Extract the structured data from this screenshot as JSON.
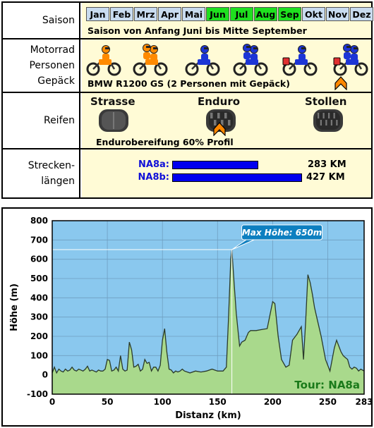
{
  "info": {
    "saison": {
      "label": "Saison",
      "months": [
        {
          "name": "Jan",
          "active": false
        },
        {
          "name": "Feb",
          "active": false
        },
        {
          "name": "Mrz",
          "active": false
        },
        {
          "name": "Apr",
          "active": false
        },
        {
          "name": "Mai",
          "active": false
        },
        {
          "name": "Jun",
          "active": true
        },
        {
          "name": "Jul",
          "active": true
        },
        {
          "name": "Aug",
          "active": true
        },
        {
          "name": "Sep",
          "active": true
        },
        {
          "name": "Okt",
          "active": false
        },
        {
          "name": "Nov",
          "active": false
        },
        {
          "name": "Dez",
          "active": false
        }
      ],
      "text": "Saison von Anfang Juni bis Mitte September"
    },
    "motorrad": {
      "label_lines": [
        "Motorrad",
        "Personen",
        "Gepäck"
      ],
      "icons": [
        {
          "name": "enduro-1-person-icon",
          "color": "#ff8a00",
          "riders": 1,
          "luggage": false
        },
        {
          "name": "enduro-2-persons-icon",
          "color": "#ff8a00",
          "riders": 2,
          "luggage": false
        },
        {
          "name": "tourer-1-person-icon",
          "color": "#1c35d6",
          "riders": 1,
          "luggage": false
        },
        {
          "name": "tourer-2-persons-icon",
          "color": "#1c35d6",
          "riders": 2,
          "luggage": false
        },
        {
          "name": "tourer-1-person-luggage-icon",
          "color": "#1c35d6",
          "riders": 1,
          "luggage": true
        },
        {
          "name": "tourer-2-persons-luggage-icon",
          "color": "#1c35d6",
          "riders": 2,
          "luggage": true
        }
      ],
      "selected_index": 5,
      "text": "BMW R1200 GS  (2 Personen mit Gepäck)"
    },
    "reifen": {
      "label": "Reifen",
      "types": [
        "Strasse",
        "Enduro",
        "Stollen"
      ],
      "selected_index": 1,
      "text": "Endurobereifung 60% Profil"
    },
    "strecke": {
      "label_lines": [
        "Strecken-",
        "längen"
      ],
      "tracks": [
        {
          "name": "NA8a:",
          "km": 283,
          "display": "283 KM"
        },
        {
          "name": "NA8b:",
          "km": 427,
          "display": "427 KM"
        }
      ]
    },
    "colors": {
      "accent_orange": "#ff8800",
      "month_active": "#1fe01f",
      "month_inactive": "#c9dcf0",
      "bar_blue": "#0000ee"
    }
  },
  "chart_data": {
    "type": "area",
    "xlabel": "Distanz  (km)",
    "ylabel": "Höhe  (m)",
    "xlim": [
      0,
      283
    ],
    "ylim": [
      -100,
      800
    ],
    "xticks": [
      "0",
      "50",
      "100",
      "150",
      "200",
      "250",
      "283"
    ],
    "yticks": [
      "800",
      "700",
      "600",
      "500",
      "400",
      "300",
      "200",
      "100",
      "0",
      "-100"
    ],
    "annotation": "Max Höhe: 650m",
    "max": {
      "x": 163,
      "y": 650
    },
    "legend": "Tour: NA8a",
    "grid": true,
    "colors": {
      "background": "#8ac8ee",
      "fill": "#a9d98c",
      "line": "#2a3a2a",
      "legend_text": "#1a7a1a",
      "annotation_bg": "#0d7fc0"
    },
    "x": [
      0,
      2,
      4,
      6,
      8,
      10,
      12,
      14,
      16,
      18,
      20,
      22,
      24,
      26,
      28,
      30,
      32,
      34,
      36,
      38,
      40,
      42,
      44,
      46,
      48,
      50,
      52,
      54,
      56,
      58,
      60,
      62,
      64,
      66,
      68,
      70,
      72,
      74,
      76,
      78,
      80,
      82,
      84,
      86,
      88,
      90,
      92,
      94,
      96,
      98,
      100,
      102,
      104,
      106,
      108,
      110,
      112,
      114,
      116,
      118,
      120,
      125,
      130,
      135,
      140,
      145,
      150,
      155,
      158,
      160,
      162,
      163,
      165,
      167,
      170,
      172,
      175,
      178,
      180,
      185,
      190,
      195,
      200,
      202,
      205,
      208,
      212,
      215,
      218,
      222,
      226,
      228,
      230,
      232,
      234,
      236,
      238,
      240,
      244,
      248,
      252,
      256,
      258,
      260,
      262,
      264,
      266,
      268,
      270,
      272,
      274,
      276,
      278,
      280,
      283
    ],
    "y": [
      10,
      40,
      10,
      30,
      20,
      15,
      30,
      20,
      25,
      40,
      25,
      20,
      30,
      25,
      20,
      30,
      45,
      20,
      25,
      20,
      15,
      25,
      20,
      20,
      30,
      80,
      75,
      20,
      25,
      40,
      20,
      100,
      30,
      20,
      25,
      170,
      130,
      40,
      45,
      55,
      20,
      30,
      80,
      60,
      65,
      20,
      40,
      40,
      20,
      50,
      180,
      240,
      120,
      30,
      25,
      10,
      20,
      15,
      20,
      30,
      20,
      10,
      20,
      15,
      20,
      30,
      20,
      20,
      40,
      300,
      600,
      650,
      480,
      320,
      150,
      170,
      180,
      220,
      230,
      230,
      235,
      240,
      380,
      370,
      200,
      80,
      40,
      50,
      180,
      210,
      250,
      80,
      280,
      520,
      480,
      420,
      350,
      300,
      200,
      80,
      20,
      140,
      180,
      150,
      120,
      100,
      90,
      80,
      40,
      30,
      40,
      35,
      20,
      30,
      20
    ]
  }
}
